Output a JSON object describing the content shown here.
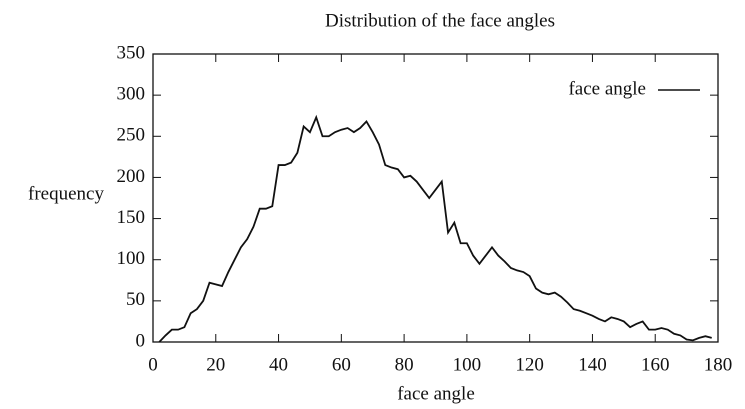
{
  "chart_data": {
    "type": "line",
    "title": "Distribution of the face angles",
    "x_label": "face angle",
    "y_label": "frequency",
    "xlim": [
      0,
      180
    ],
    "ylim": [
      0,
      350
    ],
    "xticks": [
      0,
      20,
      40,
      60,
      80,
      100,
      120,
      140,
      160,
      180
    ],
    "yticks": [
      0,
      50,
      100,
      150,
      200,
      250,
      300,
      350
    ],
    "legend": "top-right",
    "series": [
      {
        "name": "face angle",
        "color": "#111111",
        "x": [
          2,
          4,
          6,
          8,
          10,
          12,
          14,
          16,
          18,
          20,
          22,
          24,
          26,
          28,
          30,
          32,
          34,
          36,
          38,
          40,
          42,
          44,
          46,
          48,
          50,
          52,
          54,
          56,
          58,
          60,
          62,
          64,
          66,
          68,
          70,
          72,
          74,
          76,
          78,
          80,
          82,
          84,
          86,
          88,
          90,
          92,
          94,
          96,
          98,
          100,
          102,
          104,
          106,
          108,
          110,
          112,
          114,
          116,
          118,
          120,
          122,
          124,
          126,
          128,
          130,
          132,
          134,
          136,
          138,
          140,
          142,
          144,
          146,
          148,
          150,
          152,
          154,
          156,
          158,
          160,
          162,
          164,
          166,
          168,
          170,
          172,
          174,
          176,
          178
        ],
        "values": [
          0,
          8,
          15,
          15,
          18,
          35,
          40,
          50,
          72,
          70,
          68,
          85,
          100,
          115,
          125,
          140,
          162,
          162,
          165,
          215,
          215,
          218,
          230,
          262,
          255,
          273,
          250,
          250,
          255,
          258,
          260,
          255,
          260,
          268,
          255,
          240,
          215,
          212,
          210,
          200,
          202,
          195,
          185,
          175,
          185,
          195,
          133,
          145,
          120,
          120,
          105,
          95,
          105,
          115,
          105,
          98,
          90,
          87,
          85,
          80,
          65,
          60,
          58,
          60,
          55,
          48,
          40,
          38,
          35,
          32,
          28,
          25,
          30,
          28,
          25,
          18,
          22,
          25,
          15,
          15,
          17,
          15,
          10,
          8,
          3,
          2,
          5,
          7,
          5
        ]
      }
    ]
  }
}
